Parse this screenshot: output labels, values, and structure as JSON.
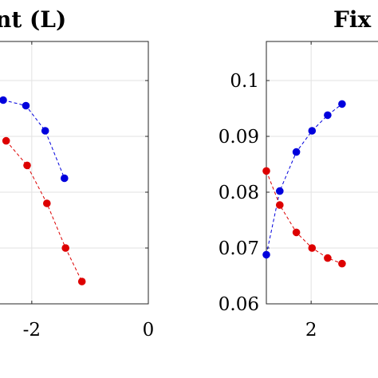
{
  "chart_data": [
    {
      "type": "line",
      "title": "nt (L)",
      "xlim": [
        -2.6,
        0
      ],
      "x_ticks": [
        "-2",
        "0"
      ],
      "ylim": [
        0.06,
        0.107
      ],
      "y_ticks": [],
      "grid": true,
      "series": [
        {
          "color": "#0000dd",
          "x": [
            -2.49,
            -2.1,
            -1.77,
            -1.44
          ],
          "y": [
            0.0965,
            0.0955,
            0.091,
            0.0825
          ]
        },
        {
          "color": "#dd0000",
          "x": [
            -2.44,
            -2.08,
            -1.74,
            -1.42,
            -1.14
          ],
          "y": [
            0.0892,
            0.0848,
            0.078,
            0.07,
            0.064
          ]
        }
      ]
    },
    {
      "type": "line",
      "title": "Fix",
      "xlim": [
        1,
        3.6
      ],
      "x_ticks": [
        "2"
      ],
      "ylim": [
        0.06,
        0.107
      ],
      "y_ticks": [
        "0.06",
        "0.07",
        "0.08",
        "0.09",
        "0.1"
      ],
      "grid": true,
      "series": [
        {
          "color": "#0000dd",
          "x": [
            1,
            1.3,
            1.67,
            2.02,
            2.37,
            2.69
          ],
          "y": [
            0.0688,
            0.0802,
            0.0872,
            0.091,
            0.0938,
            0.0958
          ]
        },
        {
          "color": "#dd0000",
          "x": [
            1,
            1.3,
            1.67,
            2.02,
            2.37,
            2.69
          ],
          "y": [
            0.0838,
            0.0777,
            0.0728,
            0.07,
            0.0682,
            0.0672
          ]
        }
      ]
    }
  ]
}
